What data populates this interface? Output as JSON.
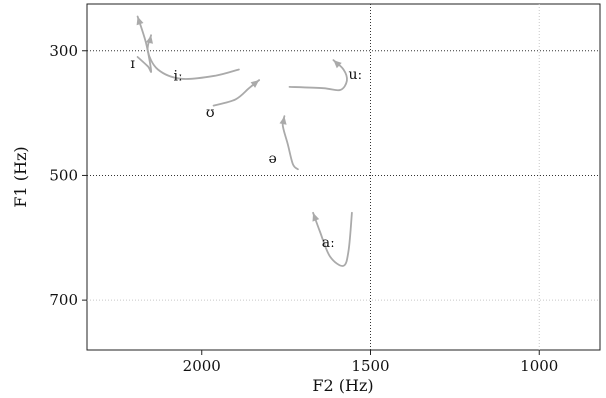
{
  "chart_data": {
    "type": "line",
    "title": "",
    "xlabel": "F2 (Hz)",
    "ylabel": "F1 (Hz)",
    "x_reversed": true,
    "y_reversed": true,
    "xlim": [
      2340,
      820
    ],
    "ylim": [
      225,
      780
    ],
    "xticks": [
      2000,
      1500,
      1000
    ],
    "yticks": [
      300,
      500,
      700
    ],
    "major_grid": {
      "x": [
        1500
      ],
      "y": [
        300,
        500
      ]
    },
    "minor_grid": {
      "x": [
        1000
      ],
      "y": [
        700
      ]
    },
    "colors": {
      "trajectory": "#aaaaaa",
      "arrowhead": "#aaaaaa",
      "major_grid": "#333333",
      "minor_grid": "#c8c8c8"
    },
    "series": [
      {
        "name": "ɪ",
        "points": [
          [
            2190,
            310
          ],
          [
            2160,
            325
          ],
          [
            2150,
            332
          ],
          [
            2165,
            288
          ],
          [
            2190,
            245
          ]
        ],
        "label_at": [
          2205,
          320
        ]
      },
      {
        "name": "iː",
        "points": [
          [
            1890,
            330
          ],
          [
            1960,
            340
          ],
          [
            2060,
            345
          ],
          [
            2130,
            330
          ],
          [
            2160,
            300
          ],
          [
            2150,
            275
          ]
        ],
        "label_at": [
          2070,
          340
        ]
      },
      {
        "name": "ʊ",
        "points": [
          [
            1965,
            388
          ],
          [
            1900,
            378
          ],
          [
            1860,
            360
          ],
          [
            1830,
            347
          ]
        ],
        "label_at": [
          1975,
          398
        ]
      },
      {
        "name": "uː",
        "points": [
          [
            1740,
            358
          ],
          [
            1640,
            360
          ],
          [
            1590,
            363
          ],
          [
            1570,
            348
          ],
          [
            1580,
            330
          ],
          [
            1610,
            315
          ]
        ],
        "label_at": [
          1545,
          337
        ]
      },
      {
        "name": "ə",
        "points": [
          [
            1715,
            490
          ],
          [
            1730,
            482
          ],
          [
            1745,
            450
          ],
          [
            1760,
            420
          ],
          [
            1755,
            405
          ]
        ],
        "label_at": [
          1790,
          472
        ]
      },
      {
        "name": "aː",
        "points": [
          [
            1555,
            560
          ],
          [
            1565,
            620
          ],
          [
            1580,
            645
          ],
          [
            1620,
            630
          ],
          [
            1650,
            590
          ],
          [
            1670,
            560
          ]
        ],
        "label_at": [
          1625,
          607
        ]
      }
    ]
  }
}
